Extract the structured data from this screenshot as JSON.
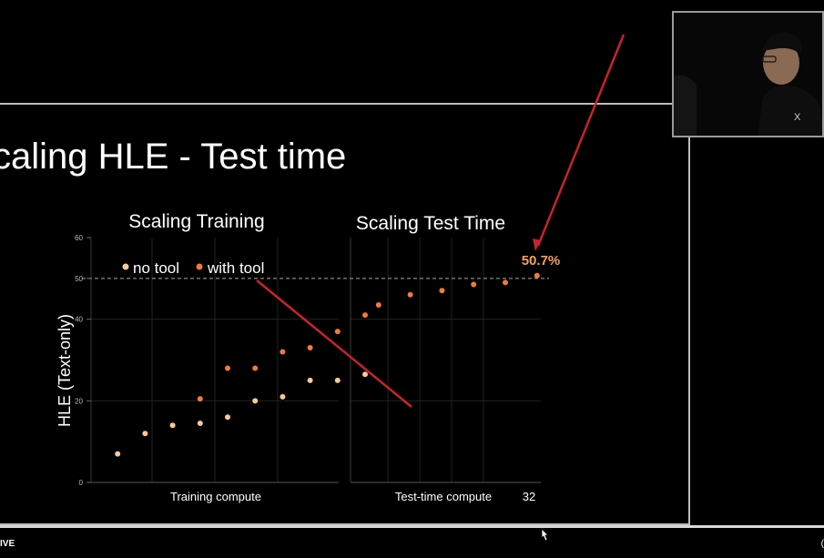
{
  "slide": {
    "title": "caling HLE - Test time"
  },
  "footer": {
    "live_label": "IVE",
    "edge_label": "("
  },
  "chart_data": {
    "type": "scatter",
    "ylabel": "HLE (Text-only)",
    "ylim": [
      0,
      60
    ],
    "yticks": [
      "0",
      "20",
      "40",
      "50",
      "60"
    ],
    "reference_line": {
      "y": 50,
      "style": "dashed"
    },
    "legend": {
      "position": "top-left",
      "entries": [
        {
          "label": "no tool",
          "color": "#f7c99a"
        },
        {
          "label": "with tool",
          "color": "#f07a3a"
        }
      ]
    },
    "panels": [
      {
        "title": "Scaling Training",
        "xlabel": "Training compute",
        "series": [
          {
            "name": "no tool",
            "color": "#f7c99a",
            "points": [
              [
                1,
                7
              ],
              [
                2,
                12
              ],
              [
                3,
                14
              ],
              [
                4,
                14.5
              ],
              [
                5,
                16
              ],
              [
                6,
                20
              ],
              [
                7,
                21
              ],
              [
                8,
                25
              ],
              [
                9,
                25
              ],
              [
                10,
                26.5
              ]
            ]
          },
          {
            "name": "with tool",
            "color": "#f07a3a",
            "points": [
              [
                4,
                20.5
              ],
              [
                5,
                28
              ],
              [
                6,
                28
              ],
              [
                7,
                32
              ],
              [
                8,
                33
              ],
              [
                9,
                37
              ],
              [
                10,
                41
              ]
            ]
          }
        ]
      },
      {
        "title": "Scaling Test Time",
        "xlabel": "Test-time compute",
        "xtick_end": "32",
        "series": [
          {
            "name": "with tool",
            "color": "#f07a3a",
            "points": [
              [
                1,
                43.5
              ],
              [
                2,
                46
              ],
              [
                3,
                47
              ],
              [
                4,
                48.5
              ],
              [
                5,
                49
              ],
              [
                6,
                50.7
              ]
            ]
          }
        ],
        "annotation": {
          "text": "50.7%",
          "color": "#f5a15a"
        }
      }
    ]
  },
  "annotations": {
    "arrow_color": "#c8232c",
    "legend_glyph": "●"
  }
}
